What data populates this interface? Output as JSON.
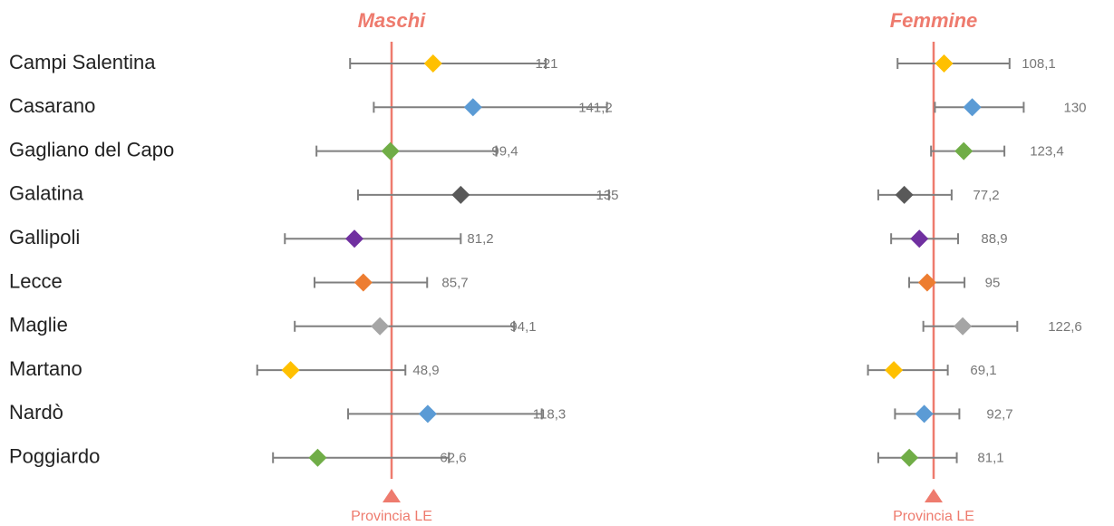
{
  "chart_data": {
    "type": "scatter",
    "subtype": "forest-plot",
    "categories": [
      "Campi Salentina",
      "Casarano",
      "Gagliano del Capo",
      "Galatina",
      "Gallipoli",
      "Lecce",
      "Maglie",
      "Martano",
      "Nardò",
      "Poggiardo"
    ],
    "reference": {
      "label": "Provincia LE",
      "value": 100,
      "color": "#EE7B6E"
    },
    "panels": [
      {
        "title": "Maschi",
        "xlim": [
          30,
          185
        ],
        "values": [
          121,
          141.2,
          99.4,
          135,
          81.2,
          85.7,
          94.1,
          48.9,
          118.3,
          62.6
        ],
        "value_labels": [
          "121",
          "141,2",
          "99,4",
          "135",
          "81,2",
          "85,7",
          "94,1",
          "48,9",
          "118,3",
          "62,6"
        ],
        "ci_low": [
          79,
          91,
          62,
          83,
          46,
          61,
          51,
          32,
          78,
          40
        ],
        "ci_high": [
          178,
          209,
          153,
          210,
          135,
          118,
          162,
          107,
          176,
          129
        ]
      },
      {
        "title": "Femmine",
        "xlim": [
          30,
          185
        ],
        "values": [
          108.1,
          130,
          123.4,
          77.2,
          88.9,
          95,
          122.6,
          69.1,
          92.7,
          81.1
        ],
        "value_labels": [
          "108,1",
          "130",
          "123,4",
          "77,2",
          "88,9",
          "95",
          "122,6",
          "69,1",
          "92,7",
          "81,1"
        ],
        "ci_low": [
          72,
          101,
          98,
          57,
          67,
          81,
          92,
          49,
          70,
          57
        ],
        "ci_high": [
          159,
          170,
          155,
          114,
          119,
          124,
          165,
          111,
          120,
          118
        ]
      }
    ],
    "colors": [
      "#FFC000",
      "#5B9BD5",
      "#70AD47",
      "#595959",
      "#7030A0",
      "#ED7D31",
      "#A5A5A5",
      "#FFC000",
      "#5B9BD5",
      "#70AD47"
    ],
    "errorbar_color": "#7F7F7F",
    "grid": false,
    "legend": "none"
  }
}
